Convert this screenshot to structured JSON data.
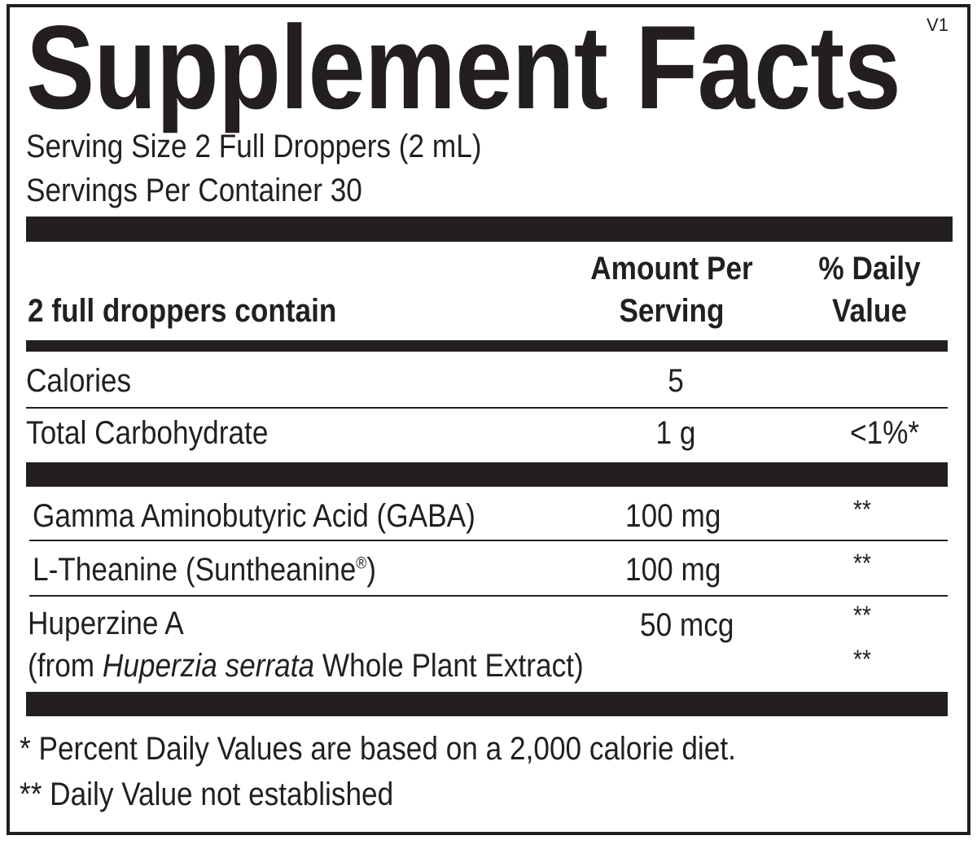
{
  "title": "Supplement Facts",
  "version": "V1",
  "serving_size": "Serving Size 2 Full Droppers (2 mL)",
  "servings_per_container": "Servings Per Container 30",
  "header": {
    "label": "2 full droppers contain",
    "amount_line1": "Amount Per",
    "amount_line2": "Serving",
    "dv_line1": "% Daily",
    "dv_line2": "Value"
  },
  "rows": [
    {
      "name": "Calories",
      "amount": "5",
      "dv": ""
    },
    {
      "name": "Total Carbohydrate",
      "amount": "1 g",
      "dv": "<1%*"
    },
    {
      "name": "Gamma Aminobutyric Acid  (GABA)",
      "amount": "100 mg",
      "dv": "**"
    },
    {
      "name": "L-Theanine (Suntheanine",
      "reg": "®",
      "name_end": ")",
      "amount": "100 mg",
      "dv": "**"
    },
    {
      "name": "Huperzine A",
      "amount": "50 mcg",
      "dv": "**",
      "sub_prefix": "(from ",
      "sub_italic": "Huperzia serrata",
      "sub_suffix": " Whole Plant Extract)",
      "sub_dv": "**"
    }
  ],
  "footnotes": [
    "* Percent Daily Values are based on a 2,000 calorie diet.",
    "** Daily Value not established"
  ]
}
